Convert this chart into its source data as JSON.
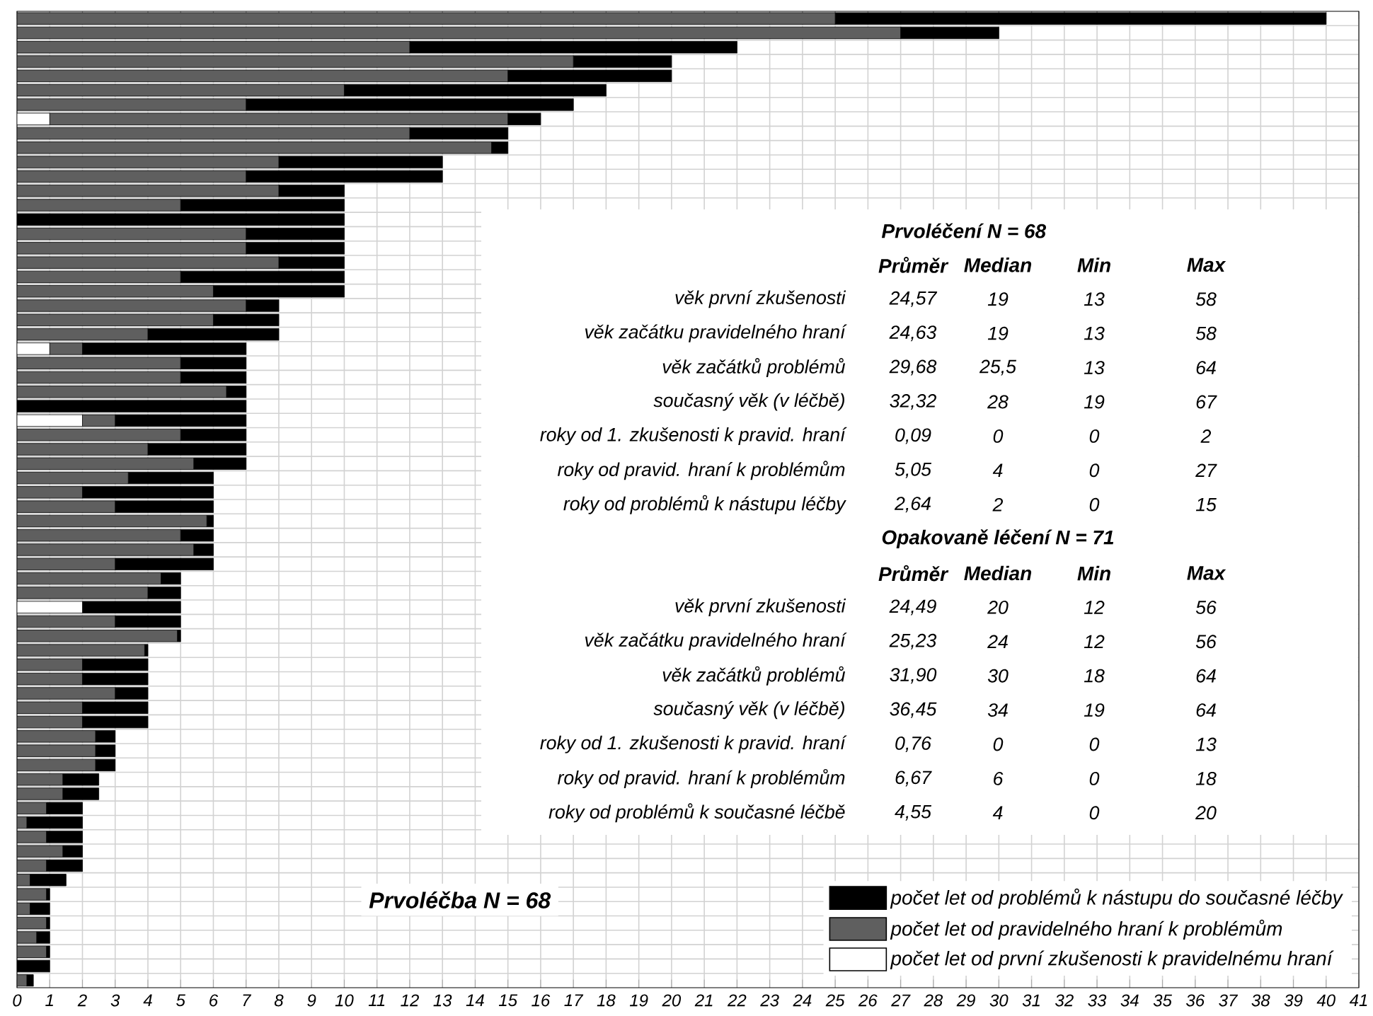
{
  "chart_data": {
    "type": "bar",
    "orientation": "horizontal",
    "stacked": true,
    "categories": [
      null,
      null,
      null,
      null,
      null,
      null,
      null,
      null,
      null,
      null,
      null,
      null,
      null,
      null,
      null,
      null,
      null,
      null,
      null,
      null,
      null,
      null,
      null,
      null,
      null,
      null,
      null,
      null,
      null,
      null,
      null,
      null,
      null,
      null,
      null,
      null,
      null,
      null,
      null,
      null,
      null,
      null,
      null,
      null,
      null,
      null,
      null,
      null,
      null,
      null,
      null,
      null,
      null,
      null,
      null,
      null,
      null,
      null,
      null,
      null,
      null,
      null,
      null,
      null,
      null,
      null,
      null,
      null
    ],
    "series": [
      {
        "name": "počet let od první zkušenosti k pravidelnému hraní",
        "color": "#ffffff",
        "values": [
          0,
          0,
          0,
          0,
          0,
          0,
          0,
          1,
          0,
          0,
          0,
          0,
          0,
          0,
          0,
          0,
          0,
          0,
          0,
          0,
          0,
          0,
          0,
          1,
          0,
          0,
          0,
          0,
          2,
          0,
          0,
          0,
          0,
          0,
          0,
          0,
          0,
          0,
          0,
          0,
          0,
          2,
          0,
          0,
          0,
          0,
          0,
          0,
          0,
          0,
          0,
          0,
          0,
          0,
          0,
          0,
          0,
          0,
          0,
          0,
          0,
          0,
          0,
          0,
          0,
          0,
          0,
          0
        ]
      },
      {
        "name": "počet let od pravidelného hraní k problémům",
        "color": "#5f5f5f",
        "values": [
          25,
          27,
          12,
          17,
          15,
          10,
          7,
          14,
          12,
          14.5,
          8,
          7,
          8,
          5,
          0,
          7,
          7,
          8,
          5,
          6,
          7,
          6,
          4,
          1,
          5,
          5,
          6.4,
          0,
          1,
          5,
          4,
          5.4,
          3.4,
          2,
          3,
          5.8,
          5,
          5.4,
          3,
          4.4,
          4,
          0,
          3,
          4.9,
          3.9,
          2,
          2,
          3,
          2,
          2,
          2.4,
          2.4,
          2.4,
          1.4,
          1.4,
          0.9,
          0.3,
          0.9,
          1.4,
          0.9,
          0.4,
          0.9,
          0.4,
          0.9,
          0.6,
          0.9,
          0,
          0.3
        ]
      },
      {
        "name": "počet let od problémů k nástupu do současné léčby",
        "color": "#000000",
        "values": [
          15,
          3,
          10,
          3,
          5,
          8,
          10,
          1,
          3,
          0.5,
          5,
          6,
          2,
          5,
          10,
          3,
          3,
          2,
          5,
          4,
          1,
          2,
          4,
          5,
          2,
          2,
          0.6,
          7,
          4,
          2,
          3,
          1.6,
          2.6,
          4,
          3,
          0.2,
          1,
          0.6,
          3,
          0.6,
          1,
          3,
          2,
          0.1,
          0.1,
          2,
          2,
          1,
          2,
          2,
          0.6,
          0.6,
          0.6,
          1.1,
          1.1,
          1.1,
          1.7,
          1.1,
          0.6,
          1.1,
          1.1,
          0.1,
          0.6,
          0.1,
          0.4,
          0.1,
          1,
          0.2
        ]
      }
    ],
    "xlim": [
      0,
      41
    ],
    "xticks": [
      0,
      1,
      2,
      3,
      4,
      5,
      6,
      7,
      8,
      9,
      10,
      11,
      12,
      13,
      14,
      15,
      16,
      17,
      18,
      19,
      20,
      21,
      22,
      23,
      24,
      25,
      26,
      27,
      28,
      29,
      30,
      31,
      32,
      33,
      34,
      35,
      36,
      37,
      38,
      39,
      40,
      41
    ],
    "grid": true,
    "legend": "bottom right",
    "tick_labels": "x",
    "annotations": [
      "Prvoléčení N = 68",
      "Průměr",
      "Median",
      "Min",
      "Max",
      "věk první zkušenosti",
      "24,57",
      "19",
      "13",
      "58",
      "věk začátku pravidelného hraní",
      "24,63",
      "19",
      "13",
      "58",
      "věk začátků problémů",
      "29,68",
      "25,5",
      "13",
      "64",
      "současný věk (v léčbě)",
      "32,32",
      "28",
      "19",
      "67",
      "roky od 1. zkušenosti k pravid. hraní",
      "0,09",
      "0",
      "0",
      "2",
      "roky od pravid. hraní k problémům",
      "5,05",
      "4",
      "0",
      "27",
      "roky od problémů k nástupu léčby",
      "2,64",
      "2",
      "0",
      "15",
      "Opakovaně léčení N = 71",
      "Průměr",
      "Median",
      "Min",
      "Max",
      "věk první zkušenosti",
      "24,49",
      "20",
      "12",
      "56",
      "věk začátku pravidelného hraní",
      "25,23",
      "24",
      "12",
      "56",
      "věk začátků problémů",
      "31,90",
      "30",
      "18",
      "64",
      "současný věk (v léčbě)",
      "36,45",
      "34",
      "19",
      "64",
      "roky od 1. zkušenosti k pravid. hraní",
      "0,76",
      "0",
      "0",
      "13",
      "roky od pravid. hraní k problémům",
      "6,67",
      "6",
      "0",
      "18",
      "roky od problémů k současné léčbě",
      "4,55",
      "4",
      "0",
      "20",
      "Prvoléčba N = 68"
    ]
  }
}
